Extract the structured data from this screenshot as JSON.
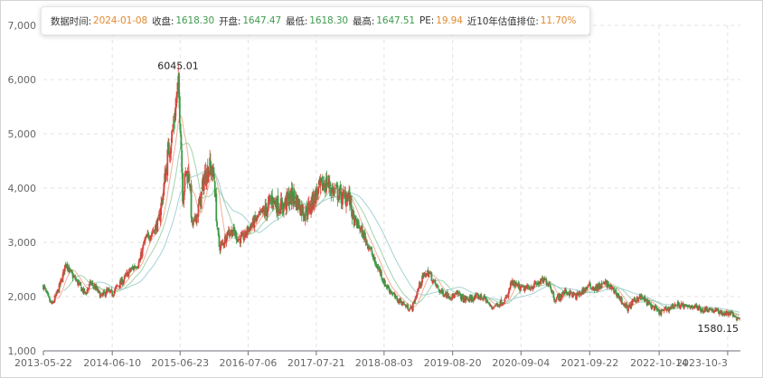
{
  "header": {
    "items": [
      {
        "label": "数据时间:",
        "value": "2024-01-08",
        "color": "#e0892e"
      },
      {
        "label": "收盘:",
        "value": "1618.30",
        "color": "#3f9a4d"
      },
      {
        "label": "开盘:",
        "value": "1647.47",
        "color": "#3f9a4d"
      },
      {
        "label": "最低:",
        "value": "1618.30",
        "color": "#3f9a4d"
      },
      {
        "label": "最高:",
        "value": "1647.51",
        "color": "#3f9a4d"
      },
      {
        "label": "PE:",
        "value": "19.94",
        "color": "#e0892e"
      },
      {
        "label": "近10年估值排位:",
        "value": "11.70%",
        "color": "#e0892e"
      }
    ]
  },
  "chart_data": {
    "type": "candlestick",
    "title": "",
    "xlabel": "",
    "ylabel": "",
    "ylim": [
      1000,
      7000
    ],
    "yticks": [
      1000,
      2000,
      3000,
      4000,
      5000,
      6000,
      7000
    ],
    "ytick_labels": [
      "1,000",
      "2,000",
      "3,000",
      "4,000",
      "5,000",
      "6,000",
      "7,000"
    ],
    "xtick_labels": [
      "2013-05-22",
      "2014-06-10",
      "2015-06-23",
      "2016-07-06",
      "2017-07-21",
      "2018-08-03",
      "2019-08-20",
      "2020-09-04",
      "2021-09-22",
      "2022-10-14",
      "2023-10-3"
    ],
    "grid": true,
    "colors": {
      "up": "#d6453d",
      "down": "#3c9a47",
      "ma_short": "#f0a58f",
      "ma_mid": "#97cfa5",
      "ma_long": "#9ccccf"
    },
    "annotations": [
      {
        "label": "6045.01",
        "date": "2015-06-12",
        "value": 6045.01
      },
      {
        "label": "1580.15",
        "date": "2023-12-22",
        "value": 1580.15
      }
    ],
    "close_series": [
      [
        "2013-05-22",
        2200
      ],
      [
        "2013-06-20",
        1950
      ],
      [
        "2013-07-10",
        1850
      ],
      [
        "2013-08-05",
        2050
      ],
      [
        "2013-09-05",
        2350
      ],
      [
        "2013-09-25",
        2650
      ],
      [
        "2013-10-15",
        2450
      ],
      [
        "2013-11-10",
        2350
      ],
      [
        "2013-12-10",
        2200
      ],
      [
        "2014-01-10",
        2050
      ],
      [
        "2014-02-10",
        2250
      ],
      [
        "2014-03-10",
        2150
      ],
      [
        "2014-04-10",
        2000
      ],
      [
        "2014-05-10",
        2100
      ],
      [
        "2014-06-10",
        2050
      ],
      [
        "2014-07-10",
        2200
      ],
      [
        "2014-08-10",
        2300
      ],
      [
        "2014-09-10",
        2450
      ],
      [
        "2014-10-10",
        2550
      ],
      [
        "2014-11-10",
        2650
      ],
      [
        "2014-12-05",
        3000
      ],
      [
        "2014-12-25",
        3100
      ],
      [
        "2015-01-20",
        3200
      ],
      [
        "2015-02-20",
        3350
      ],
      [
        "2015-03-20",
        3900
      ],
      [
        "2015-04-15",
        4600
      ],
      [
        "2015-05-10",
        5000
      ],
      [
        "2015-05-30",
        5500
      ],
      [
        "2015-06-12",
        5900
      ],
      [
        "2015-06-25",
        5200
      ],
      [
        "2015-07-08",
        3800
      ],
      [
        "2015-07-25",
        4300
      ],
      [
        "2015-08-15",
        4200
      ],
      [
        "2015-08-28",
        3300
      ],
      [
        "2015-09-15",
        3400
      ],
      [
        "2015-10-10",
        3700
      ],
      [
        "2015-11-05",
        4200
      ],
      [
        "2015-12-05",
        4400
      ],
      [
        "2015-12-30",
        4200
      ],
      [
        "2016-01-15",
        3300
      ],
      [
        "2016-01-28",
        2900
      ],
      [
        "2016-02-20",
        3000
      ],
      [
        "2016-03-15",
        3200
      ],
      [
        "2016-04-15",
        3200
      ],
      [
        "2016-05-15",
        3050
      ],
      [
        "2016-06-15",
        3100
      ],
      [
        "2016-07-06",
        3250
      ],
      [
        "2016-08-15",
        3400
      ],
      [
        "2016-09-15",
        3500
      ],
      [
        "2016-10-15",
        3600
      ],
      [
        "2016-11-15",
        3800
      ],
      [
        "2016-12-15",
        3700
      ],
      [
        "2017-01-15",
        3650
      ],
      [
        "2017-02-15",
        3800
      ],
      [
        "2017-03-15",
        3850
      ],
      [
        "2017-04-15",
        3700
      ],
      [
        "2017-05-15",
        3550
      ],
      [
        "2017-06-15",
        3650
      ],
      [
        "2017-07-21",
        3900
      ],
      [
        "2017-08-25",
        4050
      ],
      [
        "2017-09-20",
        4100
      ],
      [
        "2017-10-20",
        3950
      ],
      [
        "2017-11-20",
        3900
      ],
      [
        "2017-12-20",
        3800
      ],
      [
        "2018-01-10",
        3900
      ],
      [
        "2018-01-25",
        3750
      ],
      [
        "2018-02-15",
        3400
      ],
      [
        "2018-03-15",
        3300
      ],
      [
        "2018-04-15",
        3100
      ],
      [
        "2018-05-15",
        2900
      ],
      [
        "2018-06-15",
        2600
      ],
      [
        "2018-07-15",
        2450
      ],
      [
        "2018-08-03",
        2250
      ],
      [
        "2018-09-10",
        2100
      ],
      [
        "2018-10-10",
        1950
      ],
      [
        "2018-11-10",
        1900
      ],
      [
        "2018-12-10",
        1800
      ],
      [
        "2019-01-05",
        1780
      ],
      [
        "2019-02-15",
        2200
      ],
      [
        "2019-03-15",
        2400
      ],
      [
        "2019-04-10",
        2450
      ],
      [
        "2019-05-10",
        2250
      ],
      [
        "2019-06-10",
        2100
      ],
      [
        "2019-07-10",
        2050
      ],
      [
        "2019-08-20",
        2000
      ],
      [
        "2019-09-20",
        2050
      ],
      [
        "2019-10-20",
        1950
      ],
      [
        "2019-11-20",
        1950
      ],
      [
        "2019-12-20",
        1980
      ],
      [
        "2020-01-20",
        2000
      ],
      [
        "2020-02-20",
        1950
      ],
      [
        "2020-03-20",
        1800
      ],
      [
        "2020-04-20",
        1850
      ],
      [
        "2020-05-20",
        1900
      ],
      [
        "2020-06-20",
        1980
      ],
      [
        "2020-07-10",
        2250
      ],
      [
        "2020-08-10",
        2200
      ],
      [
        "2020-09-04",
        2150
      ],
      [
        "2020-10-10",
        2150
      ],
      [
        "2020-11-10",
        2200
      ],
      [
        "2020-12-10",
        2250
      ],
      [
        "2021-01-10",
        2300
      ],
      [
        "2021-02-10",
        2250
      ],
      [
        "2021-03-10",
        1950
      ],
      [
        "2021-04-10",
        2000
      ],
      [
        "2021-05-10",
        2100
      ],
      [
        "2021-06-10",
        2050
      ],
      [
        "2021-07-10",
        2000
      ],
      [
        "2021-08-10",
        2100
      ],
      [
        "2021-09-22",
        2200
      ],
      [
        "2021-10-22",
        2150
      ],
      [
        "2021-11-22",
        2200
      ],
      [
        "2021-12-22",
        2250
      ],
      [
        "2022-01-22",
        2150
      ],
      [
        "2022-02-22",
        2050
      ],
      [
        "2022-03-22",
        1900
      ],
      [
        "2022-04-22",
        1780
      ],
      [
        "2022-05-22",
        1900
      ],
      [
        "2022-06-22",
        2000
      ],
      [
        "2022-07-22",
        1950
      ],
      [
        "2022-08-22",
        1850
      ],
      [
        "2022-09-22",
        1780
      ],
      [
        "2022-10-14",
        1700
      ],
      [
        "2022-11-14",
        1750
      ],
      [
        "2022-12-14",
        1800
      ],
      [
        "2023-01-14",
        1850
      ],
      [
        "2023-02-14",
        1850
      ],
      [
        "2023-03-14",
        1800
      ],
      [
        "2023-04-14",
        1830
      ],
      [
        "2023-05-14",
        1800
      ],
      [
        "2023-06-14",
        1750
      ],
      [
        "2023-07-14",
        1780
      ],
      [
        "2023-08-14",
        1740
      ],
      [
        "2023-09-14",
        1720
      ],
      [
        "2023-10-14",
        1680
      ],
      [
        "2023-11-14",
        1700
      ],
      [
        "2023-12-22",
        1600
      ],
      [
        "2024-01-08",
        1618.3
      ]
    ]
  }
}
